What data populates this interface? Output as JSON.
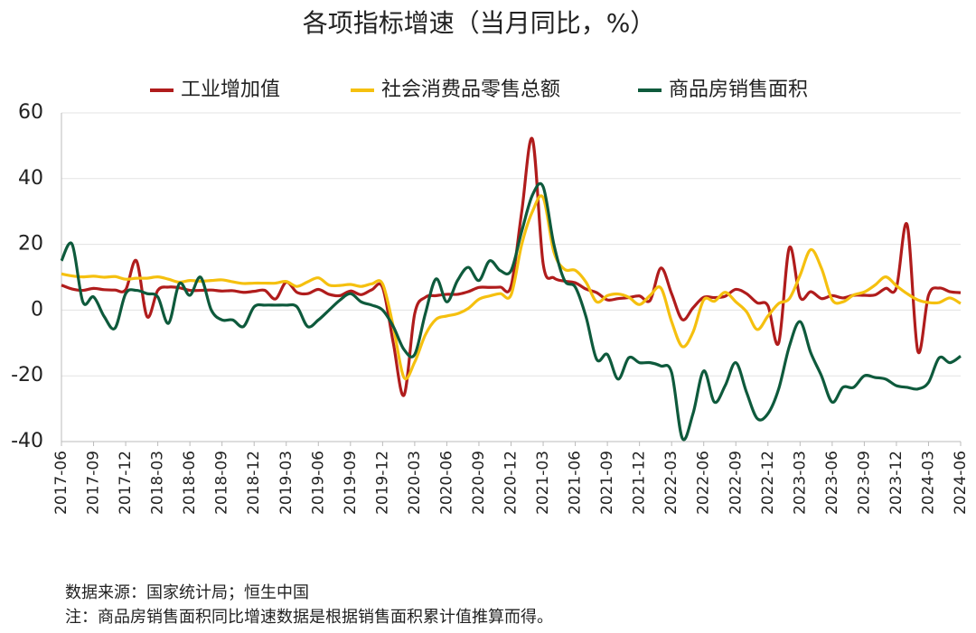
{
  "chart_data": {
    "type": "line",
    "title": "各项指标增速（当月同比，%）",
    "source": "数据来源：国家统计局；恒生中国",
    "note": "注：商品房销售面积同比增速数据是根据销售面积累计值推算而得。",
    "categories": [
      "2017-06",
      null,
      null,
      "2017-09",
      null,
      null,
      "2017-12",
      null,
      null,
      "2018-03",
      null,
      null,
      "2018-06",
      null,
      null,
      "2018-09",
      null,
      null,
      "2018-12",
      null,
      null,
      "2019-03",
      null,
      null,
      "2019-06",
      null,
      null,
      "2019-09",
      null,
      null,
      "2019-12",
      null,
      null,
      "2020-03",
      null,
      null,
      "2020-06",
      null,
      null,
      "2020-09",
      null,
      null,
      "2020-12",
      null,
      null,
      "2021-03",
      null,
      null,
      "2021-06",
      null,
      null,
      "2021-09",
      null,
      null,
      "2021-12",
      null,
      null,
      "2022-03",
      null,
      null,
      "2022-06",
      null,
      null,
      "2022-09",
      null,
      null,
      "2022-12",
      null,
      null,
      "2023-03",
      null,
      null,
      "2023-06",
      null,
      null,
      "2023-09",
      null,
      null,
      "2023-12",
      null,
      null,
      "2024-03",
      null,
      null,
      "2024-06"
    ],
    "series": [
      {
        "name": "工业增加值",
        "color": "#b01c1c",
        "values": [
          7.6,
          6.4,
          6.0,
          6.6,
          6.2,
          6.1,
          6.2,
          15,
          -2,
          6.0,
          7.0,
          6.8,
          6.0,
          6.0,
          6.1,
          5.8,
          5.9,
          5.4,
          5.7,
          6.0,
          3.4,
          8.5,
          5.4,
          5.0,
          6.3,
          4.8,
          4.4,
          5.8,
          4.7,
          6.2,
          6.9,
          -10,
          -25.9,
          -1.1,
          3.9,
          4.4,
          4.8,
          4.8,
          5.6,
          6.9,
          6.9,
          7.0,
          7.3,
          30,
          52,
          14.1,
          9.8,
          8.8,
          8.3,
          6.4,
          5.3,
          3.1,
          3.5,
          3.8,
          4.3,
          3.0,
          12.8,
          5.0,
          -2.9,
          0.7,
          3.9,
          3.8,
          4.2,
          6.3,
          5.0,
          2.2,
          1.3,
          -10,
          19,
          3.9,
          5.6,
          3.5,
          4.4,
          3.7,
          4.5,
          4.5,
          4.6,
          6.6,
          6.8,
          26,
          -12.5,
          4.5,
          6.7,
          5.6,
          5.3
        ]
      },
      {
        "name": "社会消费品零售总额",
        "color": "#f5c00f",
        "values": [
          11,
          10.4,
          10.1,
          10.3,
          10.0,
          10.2,
          9.4,
          9.7,
          9.7,
          10.1,
          9.4,
          8.5,
          9.0,
          8.8,
          9.0,
          9.2,
          8.6,
          8.1,
          8.2,
          8.2,
          8.2,
          8.7,
          7.2,
          8.6,
          9.8,
          7.6,
          7.5,
          7.8,
          7.2,
          8.0,
          8.0,
          -5,
          -20.5,
          -15.8,
          -7.5,
          -2.8,
          -1.8,
          -1.1,
          0.5,
          3.3,
          4.3,
          5.0,
          4.6,
          20,
          30,
          34.2,
          17.7,
          12.4,
          12.1,
          8.5,
          2.5,
          4.4,
          4.9,
          3.9,
          1.7,
          4.5,
          6.7,
          -3.5,
          -11.1,
          -6.7,
          3.1,
          2.7,
          5.4,
          2.5,
          -0.5,
          -5.9,
          -1.8,
          2,
          3.5,
          10.6,
          18.4,
          12.7,
          3.1,
          2.5,
          4.6,
          5.5,
          7.6,
          10.1,
          7.4,
          5,
          3.1,
          2.3,
          2.3,
          3.7,
          2.0
        ]
      },
      {
        "name": "商品房销售面积",
        "color": "#0e5a3c",
        "values": [
          15,
          20,
          2.5,
          4,
          -2,
          -5.5,
          5,
          6,
          5,
          4,
          -4,
          8,
          4.5,
          10,
          0,
          -3,
          -3,
          -5,
          1,
          1.5,
          1.5,
          1.5,
          1.0,
          -5,
          -3,
          0,
          3,
          5,
          2.5,
          1.5,
          0,
          -5,
          -12,
          -13.5,
          -1,
          9.5,
          2.5,
          9,
          13,
          9,
          15,
          12,
          12,
          24,
          35,
          37.5,
          20,
          9,
          7,
          -2,
          -15,
          -13.5,
          -21,
          -14.5,
          -16,
          -16,
          -17,
          -19,
          -39,
          -31.5,
          -18.5,
          -28,
          -23,
          -16,
          -25,
          -33,
          -31.5,
          -24,
          -11,
          -3.5,
          -13,
          -20,
          -28,
          -23.5,
          -23.5,
          -20,
          -20.5,
          -21,
          -23,
          -23.5,
          -24,
          -22,
          -14.5,
          -16,
          -14
        ]
      }
    ],
    "ylim": [
      -40,
      60
    ],
    "yticks": [
      -40,
      -20,
      0,
      20,
      40,
      60
    ],
    "grid": true,
    "legend": "top"
  }
}
